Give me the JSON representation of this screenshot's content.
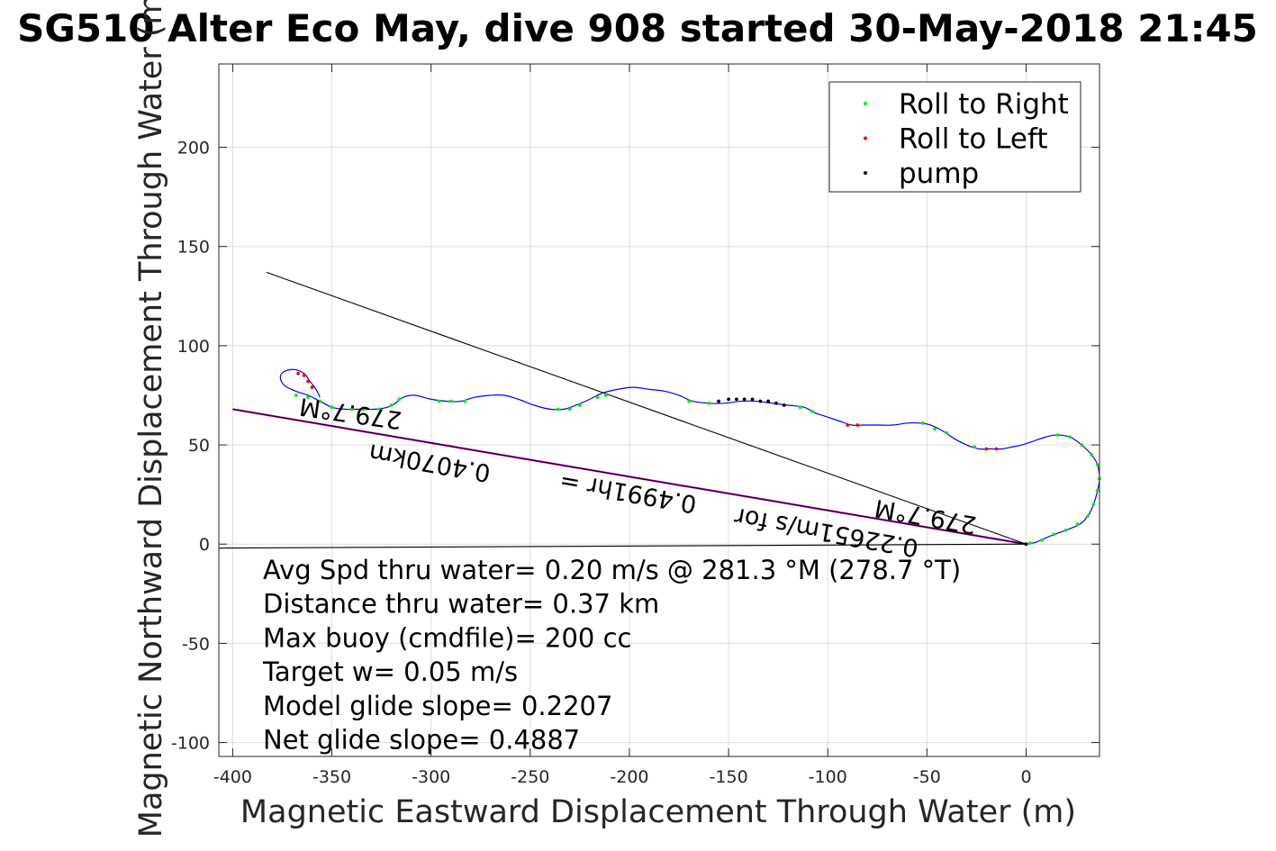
{
  "chart_data": {
    "type": "line",
    "title": "SG510 Alter Eco May, dive 908 started 30-May-2018 21:45",
    "xlabel": "Magnetic Eastward Displacement Through Water (m)",
    "ylabel": "Magnetic Northward Displacement Through Water (m)",
    "xlim": [
      -407,
      37
    ],
    "ylim": [
      -107,
      242
    ],
    "xticks": [
      -400,
      -350,
      -300,
      -250,
      -200,
      -150,
      -100,
      -50,
      0
    ],
    "yticks": [
      -100,
      -50,
      0,
      50,
      100,
      150,
      200
    ],
    "xtick_labels": [
      "-400",
      "-350",
      "-300",
      "-250",
      "-200",
      "-150",
      "-100",
      "-50",
      "0"
    ],
    "ytick_labels": [
      "-100",
      "-50",
      "0",
      "50",
      "100",
      "150",
      "200"
    ],
    "grid": true,
    "legend_placement": "top-right",
    "legend": [
      {
        "label": "Roll to Right",
        "color": "#00ee00"
      },
      {
        "label": "Roll to Left",
        "color": "#ff0000"
      },
      {
        "label": "pump",
        "color": "#000000"
      }
    ],
    "track": {
      "color": "#0000ff",
      "points": [
        [
          0,
          0
        ],
        [
          5,
          1
        ],
        [
          12,
          4
        ],
        [
          20,
          7
        ],
        [
          27,
          10
        ],
        [
          31,
          14
        ],
        [
          34,
          20
        ],
        [
          36,
          27
        ],
        [
          37,
          33
        ],
        [
          36,
          40
        ],
        [
          33,
          45
        ],
        [
          28,
          50
        ],
        [
          22,
          54
        ],
        [
          15,
          55
        ],
        [
          10,
          54
        ],
        [
          4,
          52
        ],
        [
          -2,
          50
        ],
        [
          -7,
          49
        ],
        [
          -12,
          48
        ],
        [
          -18,
          48
        ],
        [
          -24,
          48
        ],
        [
          -30,
          50
        ],
        [
          -36,
          53
        ],
        [
          -42,
          57
        ],
        [
          -48,
          60
        ],
        [
          -54,
          61
        ],
        [
          -60,
          61
        ],
        [
          -67,
          60
        ],
        [
          -75,
          60
        ],
        [
          -82,
          60
        ],
        [
          -88,
          60
        ],
        [
          -94,
          62
        ],
        [
          -100,
          64
        ],
        [
          -106,
          66
        ],
        [
          -112,
          69
        ],
        [
          -120,
          70
        ],
        [
          -128,
          71
        ],
        [
          -136,
          72
        ],
        [
          -144,
          72
        ],
        [
          -152,
          71
        ],
        [
          -160,
          71
        ],
        [
          -168,
          72
        ],
        [
          -175,
          75
        ],
        [
          -182,
          77
        ],
        [
          -190,
          78
        ],
        [
          -198,
          79
        ],
        [
          -206,
          78
        ],
        [
          -214,
          76
        ],
        [
          -220,
          73
        ],
        [
          -227,
          70
        ],
        [
          -233,
          68
        ],
        [
          -240,
          68
        ],
        [
          -248,
          70
        ],
        [
          -256,
          73
        ],
        [
          -263,
          75
        ],
        [
          -270,
          75
        ],
        [
          -278,
          74
        ],
        [
          -285,
          72
        ],
        [
          -292,
          72
        ],
        [
          -300,
          73
        ],
        [
          -308,
          75
        ],
        [
          -314,
          74
        ],
        [
          -318,
          71
        ],
        [
          -322,
          69
        ],
        [
          -328,
          68
        ],
        [
          -336,
          68
        ],
        [
          -344,
          68
        ],
        [
          -350,
          69
        ],
        [
          -356,
          72
        ],
        [
          -362,
          75
        ],
        [
          -368,
          77
        ],
        [
          -374,
          80
        ],
        [
          -376,
          84
        ],
        [
          -374,
          87
        ],
        [
          -369,
          88
        ],
        [
          -364,
          86
        ],
        [
          -361,
          82
        ],
        [
          -358,
          78
        ],
        [
          -356,
          74
        ]
      ]
    },
    "reference_lines": [
      {
        "from": [
          0,
          0
        ],
        "to": [
          -400,
          68
        ],
        "color": "#000000",
        "overlay_color": "#cc00cc"
      },
      {
        "from": [
          0,
          0
        ],
        "to": [
          -383,
          137
        ],
        "color": "#000000"
      },
      {
        "from": [
          0,
          0
        ],
        "to": [
          -407,
          -2
        ],
        "color": "#000000"
      }
    ],
    "roll_right_points": [
      [
        2,
        0.5
      ],
      [
        8,
        2
      ],
      [
        14,
        5
      ],
      [
        20,
        7
      ],
      [
        26,
        10
      ],
      [
        31,
        14
      ],
      [
        34,
        20
      ],
      [
        36,
        27
      ],
      [
        37,
        33
      ],
      [
        36,
        40
      ],
      [
        33,
        45
      ],
      [
        28,
        50
      ],
      [
        22,
        54
      ],
      [
        16,
        55
      ],
      [
        -26,
        49
      ],
      [
        -52,
        61
      ],
      [
        -46,
        58
      ],
      [
        -40,
        56
      ],
      [
        -108,
        67
      ],
      [
        -114,
        69
      ],
      [
        -160,
        71
      ],
      [
        -170,
        72
      ],
      [
        -225,
        70
      ],
      [
        -230,
        68
      ],
      [
        -236,
        68
      ],
      [
        -212,
        75
      ],
      [
        -216,
        74
      ],
      [
        -283,
        72
      ],
      [
        -290,
        72
      ],
      [
        -296,
        72
      ],
      [
        -316,
        73
      ],
      [
        -320,
        70
      ],
      [
        -326,
        68
      ],
      [
        -334,
        68
      ],
      [
        -340,
        68
      ],
      [
        -350,
        69
      ],
      [
        -356,
        72
      ],
      [
        -362,
        74
      ],
      [
        -368,
        75
      ]
    ],
    "roll_left_points": [
      [
        -15,
        48
      ],
      [
        -20,
        48
      ],
      [
        -85,
        60
      ],
      [
        -90,
        60
      ],
      [
        -367,
        86
      ],
      [
        -364,
        85
      ],
      [
        -362,
        82
      ],
      [
        -360,
        79
      ]
    ],
    "pump_points": [
      [
        0,
        0
      ],
      [
        -150,
        73
      ],
      [
        -146,
        73
      ],
      [
        -142,
        73
      ],
      [
        -138,
        73
      ],
      [
        -134,
        72
      ],
      [
        -130,
        72
      ],
      [
        -126,
        71
      ],
      [
        -122,
        70
      ],
      [
        -155,
        72
      ]
    ],
    "annotations": [
      {
        "text": "279.7°M",
        "at": [
          -340,
          70
        ],
        "rotate": 188
      },
      {
        "text": "279.7°M",
        "at": [
          -50,
          18
        ],
        "rotate": 190
      },
      {
        "text": "0.4070km",
        "at": [
          -300,
          45
        ],
        "rotate": 190
      },
      {
        "text": "0.4991hr =",
        "at": [
          -200,
          30
        ],
        "rotate": 190
      },
      {
        "text": "0.22651m/s for",
        "at": [
          -100,
          10
        ],
        "rotate": 190
      }
    ],
    "stats": [
      "Avg Spd thru water=  0.20 m/s @ 281.3 °M (278.7 °T)",
      "Distance thru water=  0.37 km",
      "Max buoy (cmdfile)= 200 cc",
      "Target w= 0.05 m/s",
      "Model glide slope= 0.2207",
      "Net glide slope= 0.4887"
    ]
  }
}
